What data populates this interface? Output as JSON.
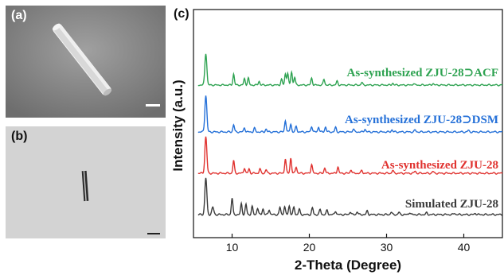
{
  "panels": {
    "a": {
      "label": "(a)"
    },
    "b": {
      "label": "(b)"
    },
    "c": {
      "label": "(c)"
    }
  },
  "colors": {
    "acf": "#2fa352",
    "dsm": "#2470d8",
    "as28": "#e0322f",
    "sim": "#3a3a3a"
  },
  "chart_data": {
    "type": "line",
    "title": "",
    "xlabel": "2-Theta (Degree)",
    "ylabel": "Intensity (a.u.)",
    "xlim": [
      5,
      45
    ],
    "xticks": [
      10,
      20,
      30,
      40
    ],
    "grid": false,
    "series": [
      {
        "name": "As-synthesized ZJU-28⊃ACF",
        "color_key": "acf",
        "peaks": [
          [
            6.6,
            1.0
          ],
          [
            10.2,
            0.35
          ],
          [
            11.6,
            0.2
          ],
          [
            12.1,
            0.22
          ],
          [
            13.5,
            0.12
          ],
          [
            16.4,
            0.18
          ],
          [
            16.9,
            0.35
          ],
          [
            17.2,
            0.38
          ],
          [
            17.7,
            0.42
          ],
          [
            18.1,
            0.25
          ],
          [
            20.3,
            0.22
          ],
          [
            21.9,
            0.18
          ],
          [
            23.6,
            0.12
          ],
          [
            26.8,
            0.08
          ],
          [
            30.8,
            0.06
          ],
          [
            33.5,
            0.05
          ],
          [
            36.0,
            0.05
          ]
        ]
      },
      {
        "name": "As-synthesized ZJU-28⊃DSM",
        "color_key": "dsm",
        "peaks": [
          [
            6.6,
            1.0
          ],
          [
            10.2,
            0.2
          ],
          [
            11.6,
            0.12
          ],
          [
            12.9,
            0.1
          ],
          [
            14.4,
            0.08
          ],
          [
            16.9,
            0.32
          ],
          [
            17.6,
            0.22
          ],
          [
            18.3,
            0.15
          ],
          [
            20.3,
            0.16
          ],
          [
            21.2,
            0.14
          ],
          [
            22.1,
            0.14
          ],
          [
            23.4,
            0.12
          ],
          [
            25.7,
            0.08
          ],
          [
            27.2,
            0.08
          ],
          [
            30.7,
            0.06
          ],
          [
            33.7,
            0.05
          ],
          [
            40.6,
            0.04
          ]
        ]
      },
      {
        "name": "As-synthesized ZJU-28",
        "color_key": "as28",
        "peaks": [
          [
            6.6,
            1.0
          ],
          [
            10.2,
            0.35
          ],
          [
            11.6,
            0.15
          ],
          [
            12.2,
            0.12
          ],
          [
            13.6,
            0.12
          ],
          [
            14.4,
            0.1
          ],
          [
            16.9,
            0.4
          ],
          [
            17.6,
            0.42
          ],
          [
            18.3,
            0.18
          ],
          [
            20.3,
            0.25
          ],
          [
            22.0,
            0.15
          ],
          [
            23.7,
            0.18
          ],
          [
            25.4,
            0.1
          ],
          [
            26.8,
            0.08
          ],
          [
            30.8,
            0.08
          ],
          [
            33.7,
            0.06
          ],
          [
            36.0,
            0.05
          ]
        ]
      },
      {
        "name": "Simulated ZJU-28",
        "color_key": "sim",
        "peaks": [
          [
            6.6,
            1.0
          ],
          [
            7.5,
            0.2
          ],
          [
            10.0,
            0.45
          ],
          [
            11.2,
            0.3
          ],
          [
            11.8,
            0.28
          ],
          [
            12.6,
            0.22
          ],
          [
            13.3,
            0.18
          ],
          [
            14.0,
            0.16
          ],
          [
            14.8,
            0.14
          ],
          [
            16.2,
            0.2
          ],
          [
            16.8,
            0.22
          ],
          [
            17.4,
            0.24
          ],
          [
            18.0,
            0.2
          ],
          [
            18.7,
            0.15
          ],
          [
            20.4,
            0.18
          ],
          [
            21.4,
            0.14
          ],
          [
            22.3,
            0.12
          ],
          [
            23.4,
            0.1
          ],
          [
            25.3,
            0.08
          ],
          [
            26.2,
            0.08
          ],
          [
            27.5,
            0.1
          ],
          [
            30.6,
            0.07
          ],
          [
            31.6,
            0.06
          ],
          [
            33.0,
            0.06
          ],
          [
            35.2,
            0.05
          ],
          [
            38.8,
            0.04
          ],
          [
            41.5,
            0.04
          ]
        ]
      }
    ]
  }
}
